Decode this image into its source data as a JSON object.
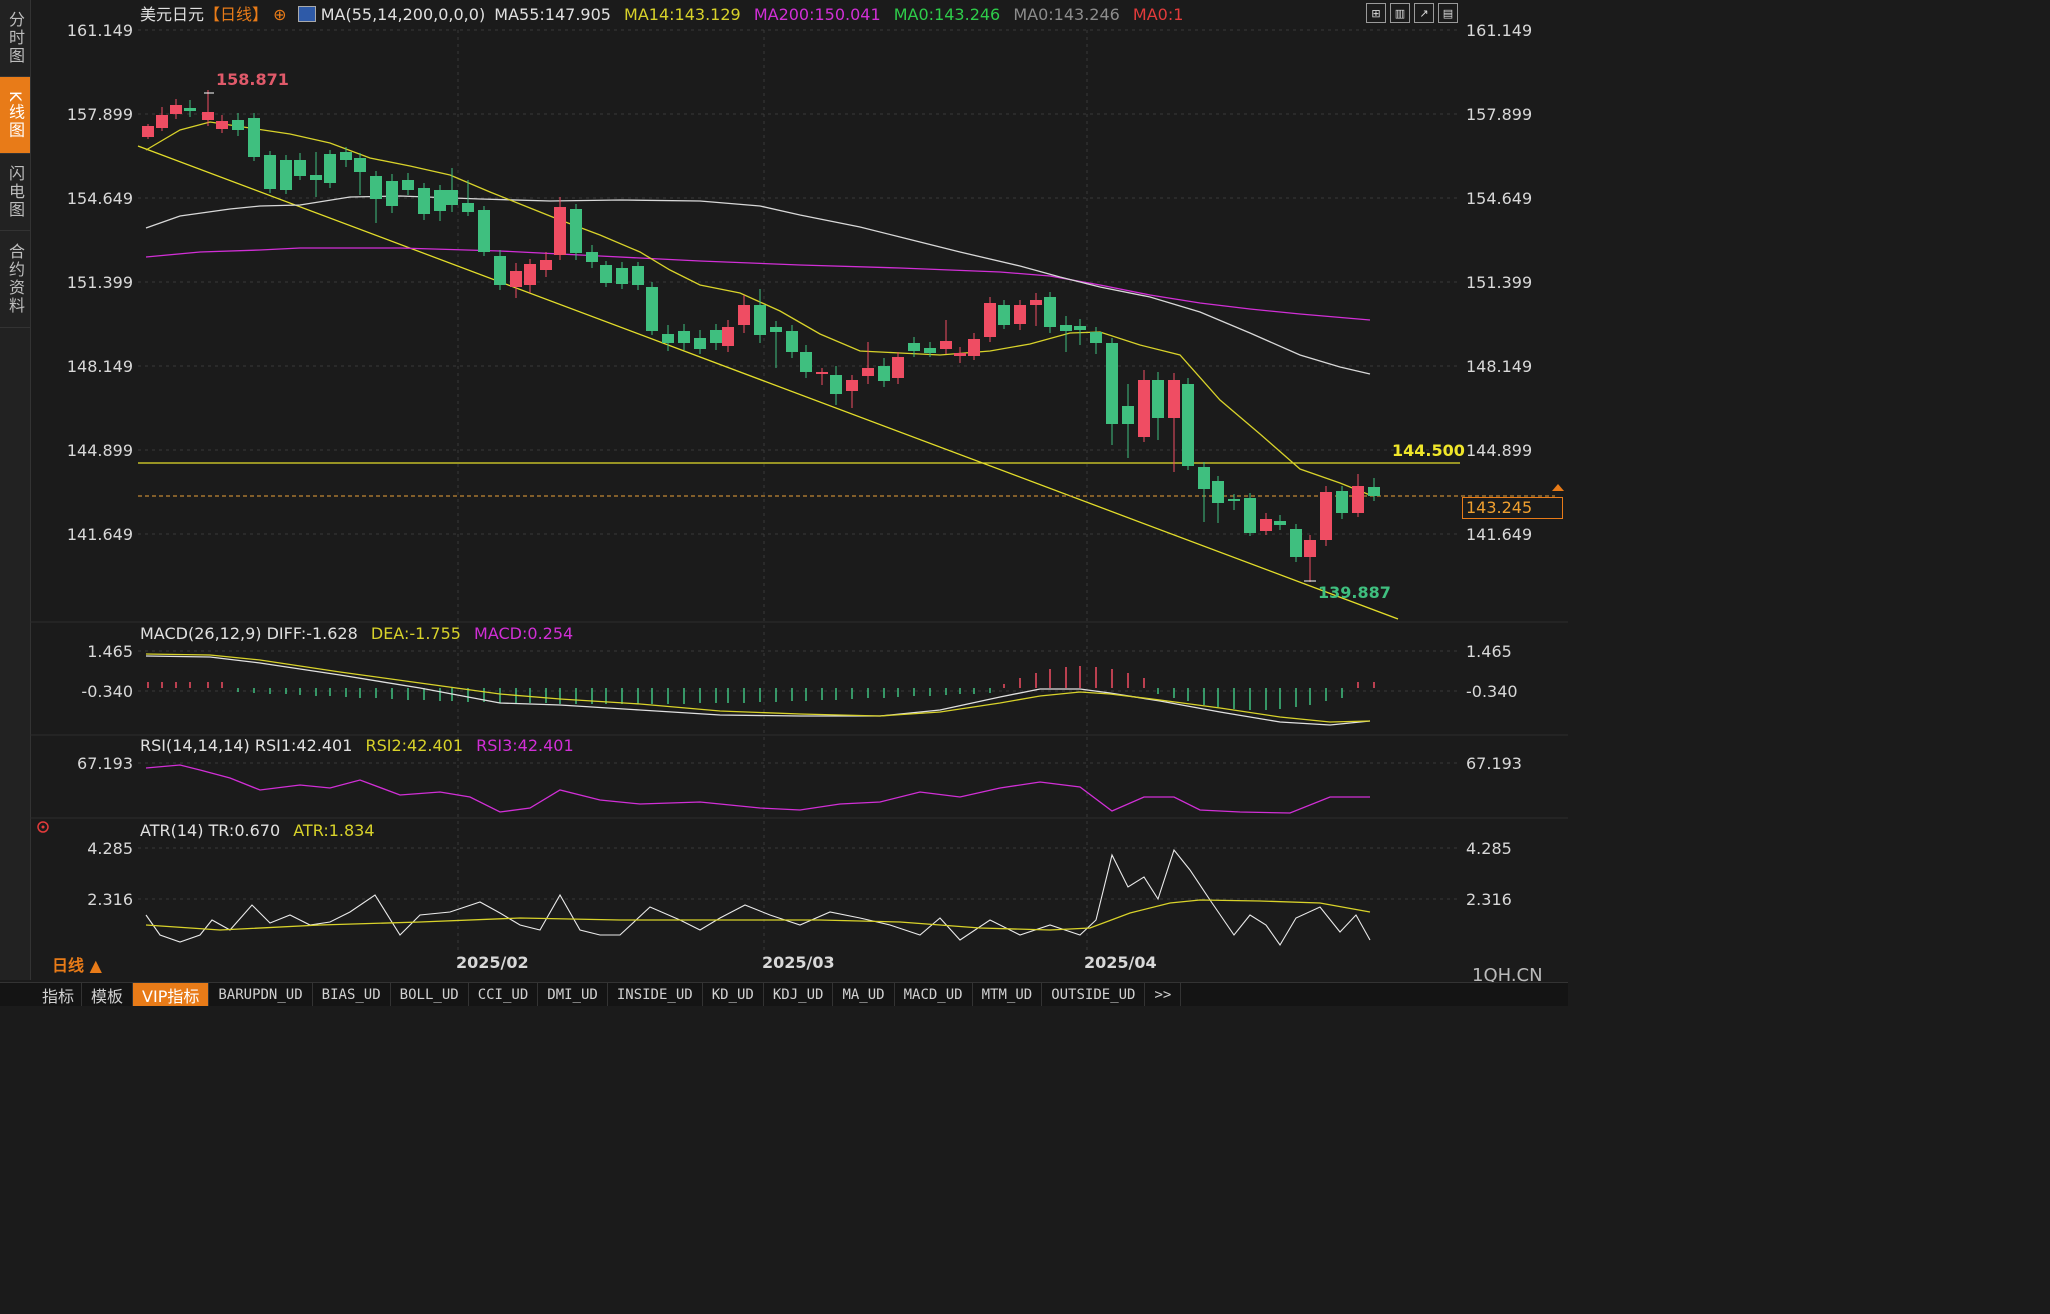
{
  "side_tabs": [
    "分时图",
    "K线图",
    "闪电图",
    "合约资料"
  ],
  "header": {
    "symbol": "美元日元",
    "period_tag": "【日线】",
    "settings_glyph": "⊕",
    "ma_params": "MA(55,14,200,0,0,0)",
    "ma55": "MA55:147.905",
    "ma14": "MA14:143.129",
    "ma200": "MA200:150.041",
    "ma0_a": "MA0:143.246",
    "ma0_b": "MA0:143.246",
    "ma0_c": "MA0:1"
  },
  "price_ticks": [
    "161.149",
    "157.899",
    "154.649",
    "151.399",
    "148.149",
    "144.899",
    "141.649"
  ],
  "annotations": {
    "high": "158.871",
    "low": "139.887",
    "hline_level": "144.500",
    "last_price": "143.245"
  },
  "macd": {
    "title": "MACD(26,12,9)",
    "diff": "DIFF:-1.628",
    "dea": "DEA:-1.755",
    "macd": "MACD:0.254",
    "ticks": [
      "1.465",
      "-0.340"
    ]
  },
  "rsi": {
    "title": "RSI(14,14,14)",
    "rsi1": "RSI1:42.401",
    "rsi2": "RSI2:42.401",
    "rsi3": "RSI3:42.401",
    "tick": "67.193"
  },
  "atr": {
    "title": "ATR(14)",
    "tr": "TR:0.670",
    "atr": "ATR:1.834",
    "ticks": [
      "4.285",
      "2.316"
    ]
  },
  "dates": [
    "2025/02",
    "2025/03",
    "2025/04"
  ],
  "period_selector": "日线 ▲",
  "bottom_tabs": [
    "指标",
    "模板",
    "VIP指标",
    "BARUPDN_UD",
    "BIAS_UD",
    "BOLL_UD",
    "CCI_UD",
    "DMI_UD",
    "INSIDE_UD",
    "KD_UD",
    "KDJ_UD",
    "MA_UD",
    "MACD_UD",
    "MTM_UD",
    "OUTSIDE_UD",
    ">>"
  ],
  "watermark": "1QH.CN",
  "colors": {
    "up": "#ef4d63",
    "down": "#3fbf7f",
    "ma14": "#d8d22a",
    "ma55": "#d8d8d8",
    "ma200": "#d12fd6",
    "accent": "#e87b18"
  }
}
